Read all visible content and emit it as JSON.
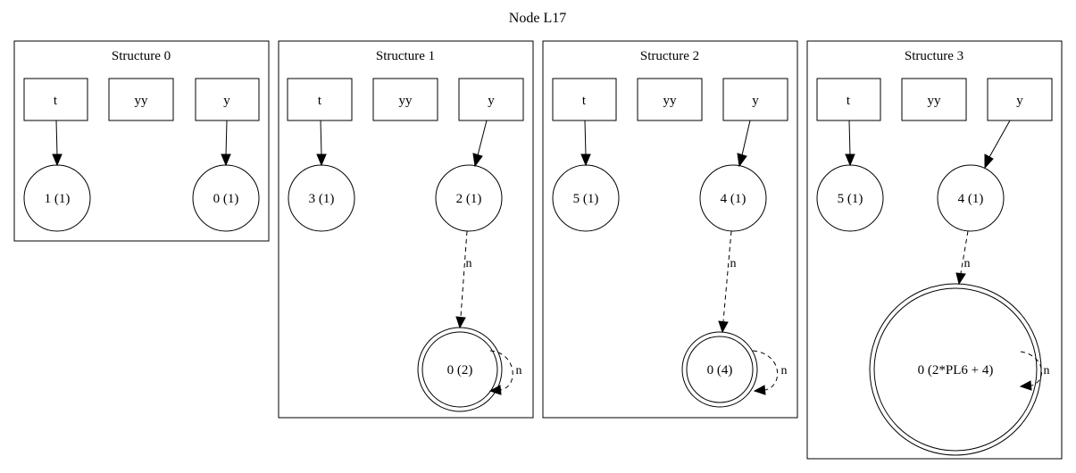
{
  "title": "Node L17",
  "structures": [
    {
      "label": "Structure 0",
      "vars": [
        "t",
        "yy",
        "y"
      ],
      "nodes": [
        "1 (1)",
        "0 (1)"
      ],
      "edges": []
    },
    {
      "label": "Structure 1",
      "vars": [
        "t",
        "yy",
        "y"
      ],
      "nodes": [
        "3 (1)",
        "2 (1)",
        "0 (2)"
      ],
      "edges": [
        "n",
        "n"
      ]
    },
    {
      "label": "Structure 2",
      "vars": [
        "t",
        "yy",
        "y"
      ],
      "nodes": [
        "5 (1)",
        "4 (1)",
        "0 (4)"
      ],
      "edges": [
        "n",
        "n"
      ]
    },
    {
      "label": "Structure 3",
      "vars": [
        "t",
        "yy",
        "y"
      ],
      "nodes": [
        "5 (1)",
        "4 (1)",
        "0 (2*PL6 + 4)"
      ],
      "edges": [
        "n",
        "n"
      ]
    }
  ]
}
